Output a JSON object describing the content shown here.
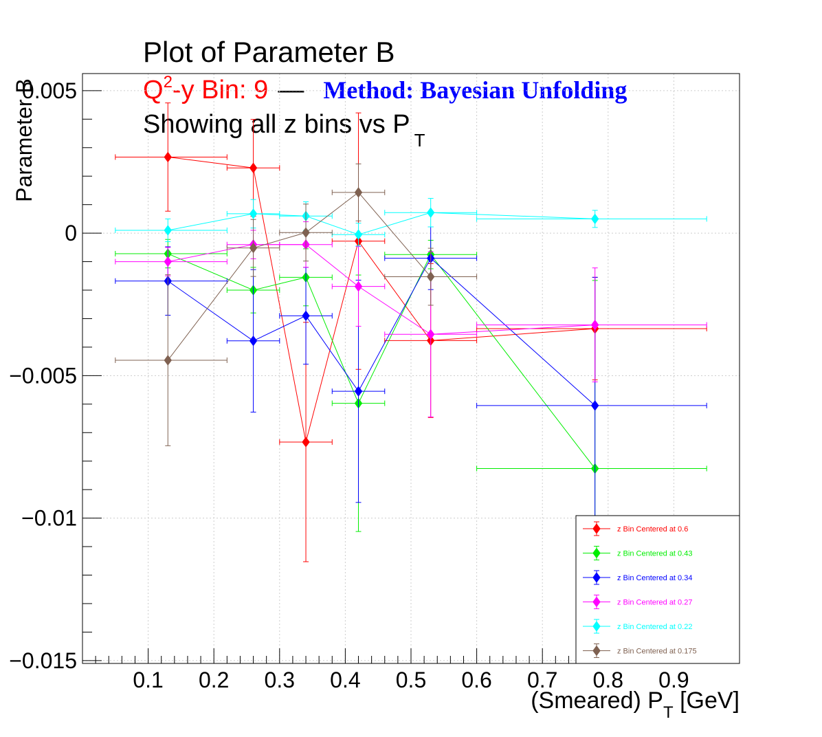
{
  "chart_data": {
    "type": "scatter",
    "title": "Plot of Parameter B",
    "subtitle_prefix": "Q",
    "subtitle_sup": "2",
    "subtitle_bin": "-y Bin: 9",
    "subtitle_dash": "—",
    "subtitle_method": "Method: Bayesian Unfolding",
    "subtitle2_text": "Showing all z bins vs P",
    "subtitle2_sub": "T",
    "xlabel_prefix": "(Smeared) P",
    "xlabel_sub": "T",
    "xlabel_suffix": " [GeV]",
    "ylabel": "Parameter B",
    "xlim": [
      0.0,
      1.0
    ],
    "ylim": [
      -0.0151,
      0.0056
    ],
    "xticks": [
      "0.1",
      "0.2",
      "0.3",
      "0.4",
      "0.5",
      "0.6",
      "0.7",
      "0.8",
      "0.9"
    ],
    "xtick_values": [
      0.1,
      0.2,
      0.3,
      0.4,
      0.5,
      0.6,
      0.7,
      0.8,
      0.9
    ],
    "yticks": [
      "0.005",
      "0",
      "−0.005",
      "−0.01",
      "−0.015"
    ],
    "ytick_values": [
      0.005,
      0,
      -0.005,
      -0.01,
      -0.015
    ],
    "grid": true,
    "legend_position": "bottom-right",
    "x_bins": [
      {
        "x": 0.13,
        "lo": 0.05,
        "hi": 0.22
      },
      {
        "x": 0.26,
        "lo": 0.22,
        "hi": 0.3
      },
      {
        "x": 0.34,
        "lo": 0.3,
        "hi": 0.38
      },
      {
        "x": 0.42,
        "lo": 0.38,
        "hi": 0.46
      },
      {
        "x": 0.53,
        "lo": 0.46,
        "hi": 0.6
      },
      {
        "x": 0.78,
        "lo": 0.6,
        "hi": 0.95
      }
    ],
    "series": [
      {
        "name": "z Bin Centered at 0.6",
        "color": "#ff0000",
        "y": [
          0.00267,
          0.00229,
          -0.00733,
          -0.00028,
          -0.00377,
          -0.00335
        ],
        "err": [
          0.0019,
          0.0017,
          0.0042,
          0.0045,
          0.0027,
          0.0018
        ]
      },
      {
        "name": "z Bin Centered at 0.43",
        "color": "#00ee00",
        "y": [
          -0.00072,
          -0.002,
          -0.00155,
          -0.00597,
          -0.00075,
          -0.00826
        ],
        "err": [
          0.0005,
          0.0008,
          0.001,
          0.0045,
          0.0005,
          0.0066
        ]
      },
      {
        "name": "z Bin Centered at 0.34",
        "color": "#0000ff",
        "y": [
          -0.00168,
          -0.00378,
          -0.0029,
          -0.00555,
          -0.00088,
          -0.00605
        ],
        "err": [
          0.0012,
          0.0025,
          0.0017,
          0.0039,
          0.0011,
          0.0045
        ]
      },
      {
        "name": "z Bin Centered at 0.27",
        "color": "#ff00ff",
        "y": [
          -0.001,
          -0.0004,
          -0.0004,
          -0.00187,
          -0.00355,
          -0.00322
        ],
        "err": [
          0.0005,
          0.0005,
          0.0008,
          0.0014,
          0.0029,
          0.002
        ]
      },
      {
        "name": "z Bin Centered at 0.22",
        "color": "#00ffff",
        "y": [
          0.0001,
          0.00068,
          0.0006,
          -5e-05,
          0.00072,
          0.0005
        ],
        "err": [
          0.0004,
          0.0005,
          0.0005,
          0.0004,
          0.0005,
          0.0003
        ]
      },
      {
        "name": "z Bin Centered at 0.175",
        "color": "#7f6151",
        "y": [
          -0.00446,
          -0.00052,
          2e-05,
          0.00143,
          -0.00153,
          null
        ],
        "err": [
          0.003,
          0.001,
          0.001,
          0.001,
          0.001,
          null
        ]
      }
    ]
  }
}
